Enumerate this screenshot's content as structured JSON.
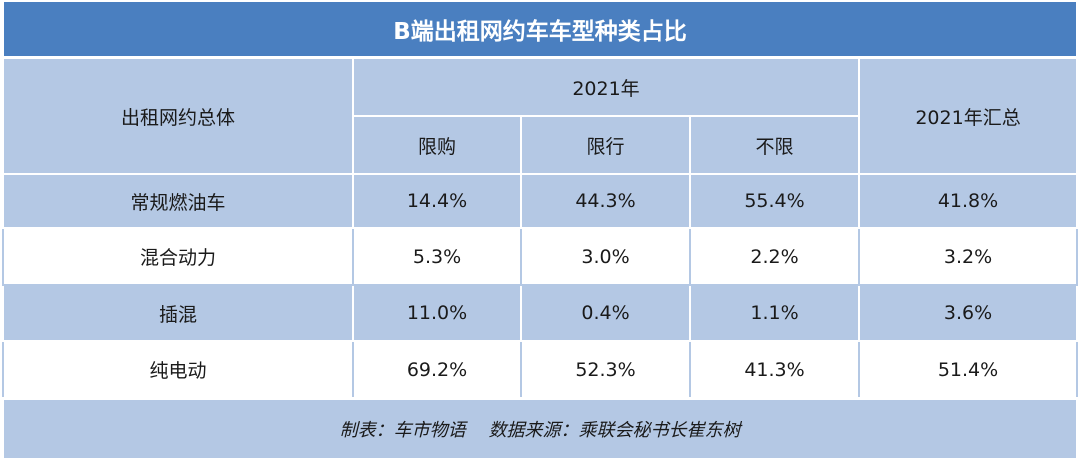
{
  "title": "B端出租网约车车型种类占比",
  "header": {
    "row_label": "出租网约总体",
    "year_group": "2021年",
    "sub_columns": [
      "限购",
      "限行",
      "不限"
    ],
    "summary": "2021年汇总"
  },
  "rows": [
    {
      "label": "常规燃油车",
      "values": [
        "14.4%",
        "44.3%",
        "55.4%",
        "41.8%"
      ]
    },
    {
      "label": "混合动力",
      "values": [
        "5.3%",
        "3.0%",
        "2.2%",
        "3.2%"
      ]
    },
    {
      "label": "插混",
      "values": [
        "11.0%",
        "0.4%",
        "1.1%",
        "3.6%"
      ]
    },
    {
      "label": "纯电动",
      "values": [
        "69.2%",
        "52.3%",
        "41.3%",
        "51.4%"
      ]
    }
  ],
  "footer": "制表：车市物语    数据来源：乘联会秘书长崔东树",
  "colors": {
    "title_bg": "#4a7fc0",
    "band": "#b4c8e4",
    "white": "#ffffff"
  }
}
